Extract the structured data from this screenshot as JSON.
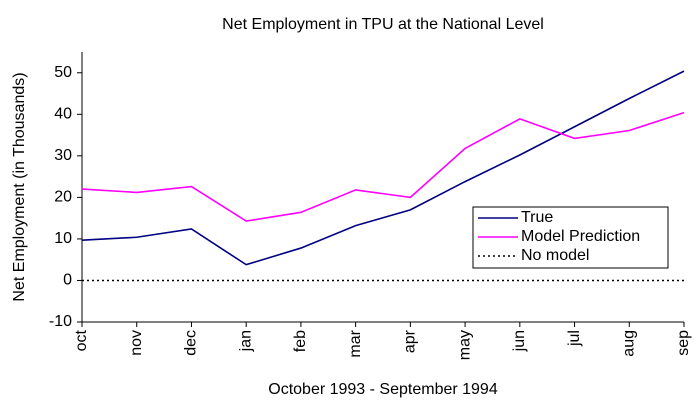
{
  "chart_data": {
    "type": "line",
    "title": "Net Employment in TPU at the National Level",
    "xlabel": "October 1993 - September 1994",
    "ylabel": "Net Employment (in Thousands)",
    "categories": [
      "oct",
      "nov",
      "dec",
      "jan",
      "feb",
      "mar",
      "apr",
      "may",
      "jun",
      "jul",
      "aug",
      "sep"
    ],
    "series": [
      {
        "name": "True",
        "color": "#000080",
        "values": [
          9.7,
          10.4,
          12.4,
          3.8,
          7.8,
          13.2,
          17.0,
          23.8,
          30.2,
          37.0,
          43.8,
          50.4
        ]
      },
      {
        "name": "Model Prediction",
        "color": "#ff00ff",
        "values": [
          22.0,
          21.2,
          22.6,
          14.3,
          16.4,
          21.8,
          20.0,
          31.8,
          38.9,
          34.2,
          36.1,
          40.4
        ]
      },
      {
        "name": "No model",
        "color": "#000000",
        "dash": "dotted",
        "values": [
          0,
          0,
          0,
          0,
          0,
          0,
          0,
          0,
          0,
          0,
          0,
          0
        ]
      }
    ],
    "ylim": [
      -10,
      55
    ],
    "yticks": [
      -10,
      0,
      10,
      20,
      30,
      40,
      50
    ],
    "grid": false,
    "legend": "right"
  }
}
